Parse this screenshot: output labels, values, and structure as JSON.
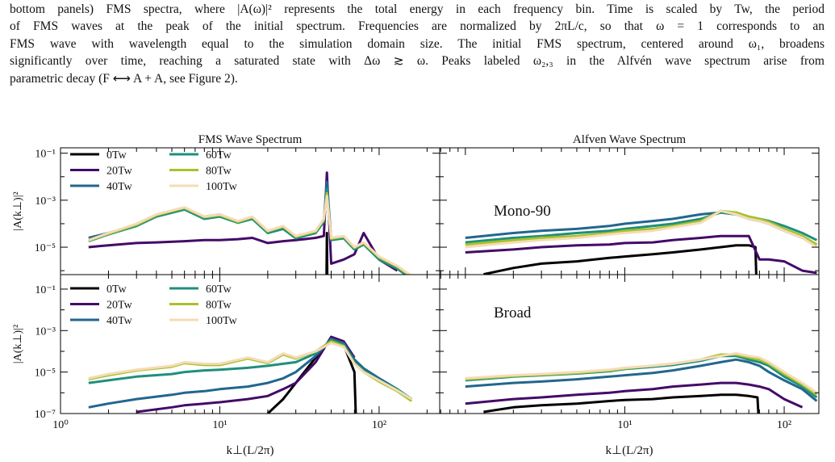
{
  "caption": {
    "lines": [
      "bottom panels) FMS spectra, where |A(ω)|² represents the total energy in each frequency bin. Time is scaled by Tw, the period",
      "of FMS waves at the peak of the initial spectrum. Frequencies are normalized by 2πL/c, so that ω = 1 corresponds to an",
      "FMS wave with wavelength equal to the simulation domain size. The initial FMS spectrum, centered around ω₁, broadens",
      "significantly over time, reaching a saturated state with Δω ≳ ω. Peaks labeled ω₂,₃ in the Alfvén wave spectrum arise from",
      "parametric decay (F ⟷ A + A, see Figure 2)."
    ]
  },
  "chart_data": [
    {
      "type": "line",
      "title": "FMS Wave Spectrum",
      "ylabel": "|A(k⊥)|²",
      "log_x": true,
      "log_y": true,
      "xlim": [
        1,
        240
      ],
      "ylim": [
        6.8e-07,
        0.17
      ],
      "xticks": [
        1,
        10,
        100
      ],
      "xtick_labels": false,
      "xminorticks": [
        2,
        3,
        4,
        5,
        6,
        7,
        8,
        9,
        20,
        30,
        40,
        50,
        60,
        70,
        80,
        90,
        200
      ],
      "yticks": [
        {
          "value": 0.1,
          "label": "10⁻¹"
        },
        {
          "value": 0.001,
          "label": "10⁻³"
        },
        {
          "value": 1e-05,
          "label": "10⁻⁵"
        }
      ],
      "yminorticks": [
        0.01,
        0.0001,
        1e-06
      ],
      "legend": "upper left",
      "x": [
        1.5,
        2,
        3,
        4,
        6,
        8,
        10,
        13,
        16,
        20,
        25,
        30,
        40,
        45,
        47,
        50,
        60,
        70,
        80,
        100,
        130,
        160
      ],
      "series": [
        {
          "name": "0Tw",
          "color": "#000000",
          "x": [
            46.5,
            47,
            47.5
          ],
          "values": [
            1e-08,
            4e-05,
            1e-08
          ]
        },
        {
          "name": "20Tw",
          "color": "#440a68",
          "values": [
            1e-05,
            1.2e-05,
            1.5e-05,
            1.6e-05,
            1.8e-05,
            2e-05,
            2e-05,
            2.2e-05,
            2.5e-05,
            1.5e-05,
            1.8e-05,
            2e-05,
            2.5e-05,
            3e-05,
            0.015,
            2e-06,
            3e-06,
            5e-06,
            4e-05,
            3e-06,
            1e-06,
            null
          ]
        },
        {
          "name": "40Tw",
          "color": "#22668e",
          "values": [
            2.5e-05,
            4e-05,
            9e-05,
            0.00022,
            0.00045,
            0.0002,
            0.00025,
            0.00012,
            0.00018,
            4.5e-05,
            7e-05,
            2.7e-05,
            4.5e-05,
            0.00014,
            0.006,
            2.2e-05,
            2.7e-05,
            9e-06,
            1.5e-05,
            3.5e-06,
            1.4e-06,
            5e-07
          ]
        },
        {
          "name": "60Tw",
          "color": "#1f8f7c",
          "values": [
            1.8e-05,
            3.5e-05,
            8e-05,
            0.0002,
            0.0004,
            0.00016,
            0.0002,
            0.00011,
            0.00016,
            4e-05,
            6e-05,
            2.4e-05,
            4e-05,
            0.00012,
            0.003,
            2e-05,
            2.4e-05,
            8e-06,
            1.3e-05,
            3e-06,
            1.2e-06,
            4.5e-07
          ]
        },
        {
          "name": "80Tw",
          "color": "#a7c22a",
          "values": [
            1.9e-05,
            3.7e-05,
            9e-05,
            0.00023,
            0.00047,
            0.00019,
            0.00023,
            0.00012,
            0.00019,
            4.7e-05,
            7.5e-05,
            2.8e-05,
            4.7e-05,
            0.00015,
            0.002,
            2.3e-05,
            2.8e-05,
            9.5e-06,
            1.5e-05,
            3.7e-06,
            1.5e-06,
            5.5e-07
          ]
        },
        {
          "name": "100Tw",
          "color": "#f5dbb6",
          "values": [
            2e-05,
            4e-05,
            0.0001,
            0.00025,
            0.0005,
            0.0002,
            0.00025,
            0.00013,
            0.0002,
            5e-05,
            8e-05,
            3e-05,
            5e-05,
            0.00016,
            0.0015,
            2.5e-05,
            3e-05,
            1e-05,
            1.6e-05,
            4e-06,
            1.6e-06,
            6e-07
          ]
        }
      ]
    },
    {
      "type": "line",
      "title": "Alfven Wave Spectrum",
      "annotation": "Mono-90",
      "log_x": true,
      "log_y": true,
      "xlim": [
        0.69,
        165
      ],
      "ylim": [
        6.8e-07,
        0.17
      ],
      "xticks": [
        1,
        10,
        100
      ],
      "xtick_labels": false,
      "xminorticks": [
        0.7,
        0.8,
        0.9,
        2,
        3,
        4,
        5,
        6,
        7,
        8,
        9,
        20,
        30,
        40,
        50,
        60,
        70,
        80,
        90
      ],
      "yticks": [
        0.1,
        0.001,
        1e-05
      ],
      "ytick_labels": false,
      "yminorticks": [
        0.01,
        0.0001,
        1e-06
      ],
      "x": [
        1,
        2,
        3,
        5,
        8,
        10,
        15,
        20,
        30,
        40,
        50,
        60,
        70,
        80,
        100,
        130,
        160
      ],
      "series": [
        {
          "color": "#000000",
          "x": [
            1.3,
            2,
            3,
            5,
            8,
            10,
            15,
            20,
            30,
            40,
            50,
            60,
            66,
            68
          ],
          "values": [
            7e-07,
            1.3e-06,
            2e-06,
            2.5e-06,
            3.5e-06,
            4e-06,
            5e-06,
            6e-06,
            8e-06,
            1e-05,
            1.2e-05,
            1.2e-05,
            1e-05,
            1e-08
          ]
        },
        {
          "color": "#440a68",
          "values": [
            6e-06,
            8e-06,
            1e-05,
            1.2e-05,
            1.3e-05,
            1.5e-05,
            1.6e-05,
            2e-05,
            2.5e-05,
            3e-05,
            3e-05,
            3e-05,
            3e-06,
            3e-06,
            2.5e-06,
            1e-06,
            8e-07
          ]
        },
        {
          "color": "#22668e",
          "values": [
            2.5e-05,
            4e-05,
            5e-05,
            6e-05,
            8e-05,
            0.0001,
            0.00013,
            0.00016,
            0.00025,
            0.0003,
            0.00025,
            0.00016,
            0.00013,
            0.0001,
            5e-05,
            2.5e-05,
            1.3e-05
          ]
        },
        {
          "color": "#1f8f7c",
          "values": [
            1.6e-05,
            2.5e-05,
            3e-05,
            4e-05,
            5e-05,
            6e-05,
            8e-05,
            0.0001,
            0.00016,
            0.0003,
            0.00025,
            0.0002,
            0.00016,
            0.00013,
            8e-05,
            4e-05,
            2e-05
          ]
        },
        {
          "color": "#a7c22a",
          "values": [
            1.3e-05,
            2e-05,
            2.5e-05,
            3e-05,
            4e-05,
            5e-05,
            6e-05,
            8e-05,
            0.00013,
            0.00035,
            0.0003,
            0.0002,
            0.00016,
            0.00012,
            6e-05,
            3e-05,
            1.3e-05
          ]
        },
        {
          "color": "#f5dbb6",
          "values": [
            1e-05,
            1.6e-05,
            2e-05,
            2.5e-05,
            3.5e-05,
            4e-05,
            5e-05,
            7e-05,
            0.00011,
            0.00035,
            0.00025,
            0.00016,
            0.00013,
            0.0001,
            5e-05,
            2.5e-05,
            1e-05
          ]
        }
      ]
    },
    {
      "type": "line",
      "xlabel": "k⊥(L/2π)",
      "ylabel": "|A(k⊥)|²",
      "log_x": true,
      "log_y": true,
      "xlim": [
        1,
        240
      ],
      "ylim": [
        1e-07,
        0.5
      ],
      "xticks": [
        {
          "value": 1,
          "label": "10⁰"
        },
        {
          "value": 10,
          "label": "10¹"
        },
        {
          "value": 100,
          "label": "10²"
        }
      ],
      "xminorticks": [
        2,
        3,
        4,
        5,
        6,
        7,
        8,
        9,
        20,
        30,
        40,
        50,
        60,
        70,
        80,
        90,
        200
      ],
      "yticks": [
        {
          "value": 0.1,
          "label": "10⁻¹"
        },
        {
          "value": 0.001,
          "label": "10⁻³"
        },
        {
          "value": 1e-05,
          "label": "10⁻⁵"
        },
        {
          "value": 1e-07,
          "label": "10⁻⁷"
        }
      ],
      "yminorticks": [
        0.01,
        0.0001,
        1e-06
      ],
      "legend": "upper left",
      "x": [
        1.5,
        2,
        3,
        5,
        6,
        8,
        10,
        15,
        20,
        25,
        30,
        40,
        50,
        60,
        70,
        80,
        100,
        130,
        160
      ],
      "series": [
        {
          "name": "0Tw",
          "color": "#000000",
          "x": [
            20,
            25,
            30,
            40,
            50,
            60,
            70,
            72
          ],
          "values": [
            1e-07,
            5e-07,
            3e-06,
            5e-05,
            0.0004,
            0.0002,
            1e-05,
            1e-08
          ]
        },
        {
          "name": "20Tw",
          "color": "#440a68",
          "values": [
            null,
            null,
            1.2e-07,
            2e-07,
            2.5e-07,
            3e-07,
            3.5e-07,
            5e-07,
            7e-07,
            1.5e-06,
            3e-06,
            3e-05,
            0.0005,
            0.0003,
            5e-05,
            null,
            null,
            null,
            null
          ]
        },
        {
          "name": "40Tw",
          "color": "#22668e",
          "values": [
            2e-07,
            3e-07,
            5e-07,
            8e-07,
            1e-06,
            1.2e-06,
            1.5e-06,
            2e-06,
            3e-06,
            5e-06,
            1e-05,
            6e-05,
            0.0004,
            0.00025,
            4e-05,
            1.5e-05,
            5e-06,
            1.5e-06,
            5e-07
          ]
        },
        {
          "name": "60Tw",
          "color": "#1f8f7c",
          "values": [
            3e-06,
            4e-06,
            6e-06,
            8e-06,
            1e-05,
            1.2e-05,
            1.3e-05,
            1.6e-05,
            2e-05,
            2.5e-05,
            3e-05,
            8e-05,
            0.00035,
            0.0002,
            3e-05,
            1.2e-05,
            4e-06,
            1.5e-06,
            5e-07
          ]
        },
        {
          "name": "80Tw",
          "color": "#a7c22a",
          "values": [
            4.5e-06,
            7e-06,
            1.2e-05,
            1.8e-05,
            2.7e-05,
            2.2e-05,
            2.2e-05,
            4.5e-05,
            2.7e-05,
            7e-05,
            4.5e-05,
            0.0001,
            0.0003,
            0.00018,
            2.5e-05,
            1e-05,
            3.5e-06,
            1.2e-06,
            4e-07
          ]
        },
        {
          "name": "100Tw",
          "color": "#f5dbb6",
          "values": [
            5e-06,
            8e-06,
            1.3e-05,
            2e-05,
            3e-05,
            2.5e-05,
            2.5e-05,
            5e-05,
            3e-05,
            8e-05,
            5e-05,
            0.0001,
            0.00025,
            0.00016,
            2.5e-05,
            1e-05,
            4e-06,
            1.3e-06,
            5e-07
          ]
        }
      ]
    },
    {
      "type": "line",
      "xlabel": "k⊥(L/2π)",
      "annotation": "Broad",
      "log_x": true,
      "log_y": true,
      "xlim": [
        0.69,
        165
      ],
      "ylim": [
        1e-07,
        0.5
      ],
      "xticks": [
        {
          "value": 10,
          "label": "10¹"
        },
        {
          "value": 100,
          "label": "10²"
        }
      ],
      "xminorticks": [
        0.7,
        0.8,
        0.9,
        1,
        2,
        3,
        4,
        5,
        6,
        7,
        8,
        9,
        20,
        30,
        40,
        50,
        60,
        70,
        80,
        90
      ],
      "yticks": [
        0.1,
        0.001,
        1e-05,
        1e-07
      ],
      "ytick_labels": false,
      "yminorticks": [
        0.01,
        0.0001,
        1e-06
      ],
      "x": [
        1,
        2,
        3,
        5,
        8,
        10,
        15,
        20,
        30,
        40,
        50,
        60,
        70,
        80,
        100,
        130,
        160
      ],
      "series": [
        {
          "color": "#000000",
          "x": [
            1.3,
            2,
            3,
            5,
            8,
            10,
            15,
            20,
            30,
            40,
            50,
            60,
            68,
            70
          ],
          "values": [
            1.2e-07,
            2e-07,
            2.5e-07,
            3e-07,
            4e-07,
            4.5e-07,
            5e-07,
            6e-07,
            7e-07,
            8e-07,
            8e-07,
            7e-07,
            6e-07,
            1e-08
          ]
        },
        {
          "color": "#440a68",
          "values": [
            3e-07,
            5e-07,
            6e-07,
            8e-07,
            1e-06,
            1.2e-06,
            1.5e-06,
            2e-06,
            2.5e-06,
            3e-06,
            3e-06,
            2.5e-06,
            2e-06,
            1.5e-06,
            5e-07,
            2e-07,
            null
          ]
        },
        {
          "color": "#22668e",
          "values": [
            2e-06,
            3e-06,
            3.5e-06,
            4.5e-06,
            6e-06,
            7e-06,
            9e-06,
            1.2e-05,
            2e-05,
            3e-05,
            4e-05,
            3e-05,
            2e-05,
            1e-05,
            4e-06,
            1.5e-06,
            4e-07
          ]
        },
        {
          "color": "#1f8f7c",
          "values": [
            4e-06,
            6e-06,
            7e-06,
            8.5e-06,
            1.1e-05,
            1.4e-05,
            1.8e-05,
            2.2e-05,
            3.5e-05,
            6e-05,
            6e-05,
            4e-05,
            3e-05,
            2e-05,
            6e-06,
            2e-06,
            6e-07
          ]
        },
        {
          "color": "#a7c22a",
          "values": [
            4.5e-06,
            6.5e-06,
            7.5e-06,
            9e-06,
            1.2e-05,
            1.5e-05,
            2e-05,
            2.5e-05,
            4e-05,
            7e-05,
            7e-05,
            5e-05,
            4e-05,
            2.5e-05,
            8e-06,
            2.5e-06,
            8e-07
          ]
        },
        {
          "color": "#f5dbb6",
          "values": [
            5e-06,
            7e-06,
            8e-06,
            1e-05,
            1.3e-05,
            1.6e-05,
            2e-05,
            2.5e-05,
            4e-05,
            6e-05,
            8e-05,
            6e-05,
            5e-05,
            3e-05,
            1e-05,
            3e-06,
            1e-06
          ]
        }
      ]
    }
  ]
}
